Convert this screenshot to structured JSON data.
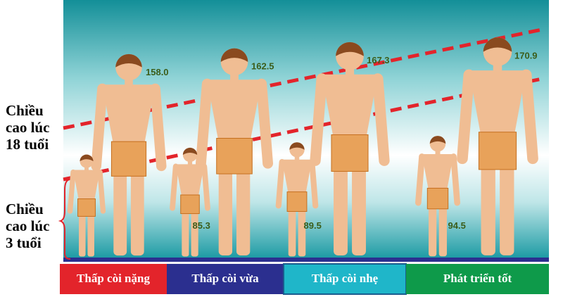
{
  "chart_data": {
    "type": "pictograph",
    "categories": [
      "Thấp còi nặng",
      "Thấp còi vừa",
      "Thấp còi nhẹ",
      "Phát triển tốt"
    ],
    "category_colors": [
      "#e3242b",
      "#2b2f8f",
      "#1fb6c9",
      "#0e9a4a"
    ],
    "series": [
      {
        "name": "Chiều cao lúc 18 tuổi",
        "color": "#e8a25a",
        "values": [
          158.0,
          162.5,
          167.3,
          170.9
        ],
        "value_labels": [
          "158.0",
          "162.5",
          "167.3",
          "170.9"
        ]
      },
      {
        "name": "Chiều cao lúc 3 tuổi",
        "color": "#e8a25a",
        "values": [
          80,
          85.3,
          89.5,
          94.5
        ],
        "value_labels": [
          null,
          "85.3",
          "89.5",
          "94.5"
        ]
      }
    ]
  }
}
